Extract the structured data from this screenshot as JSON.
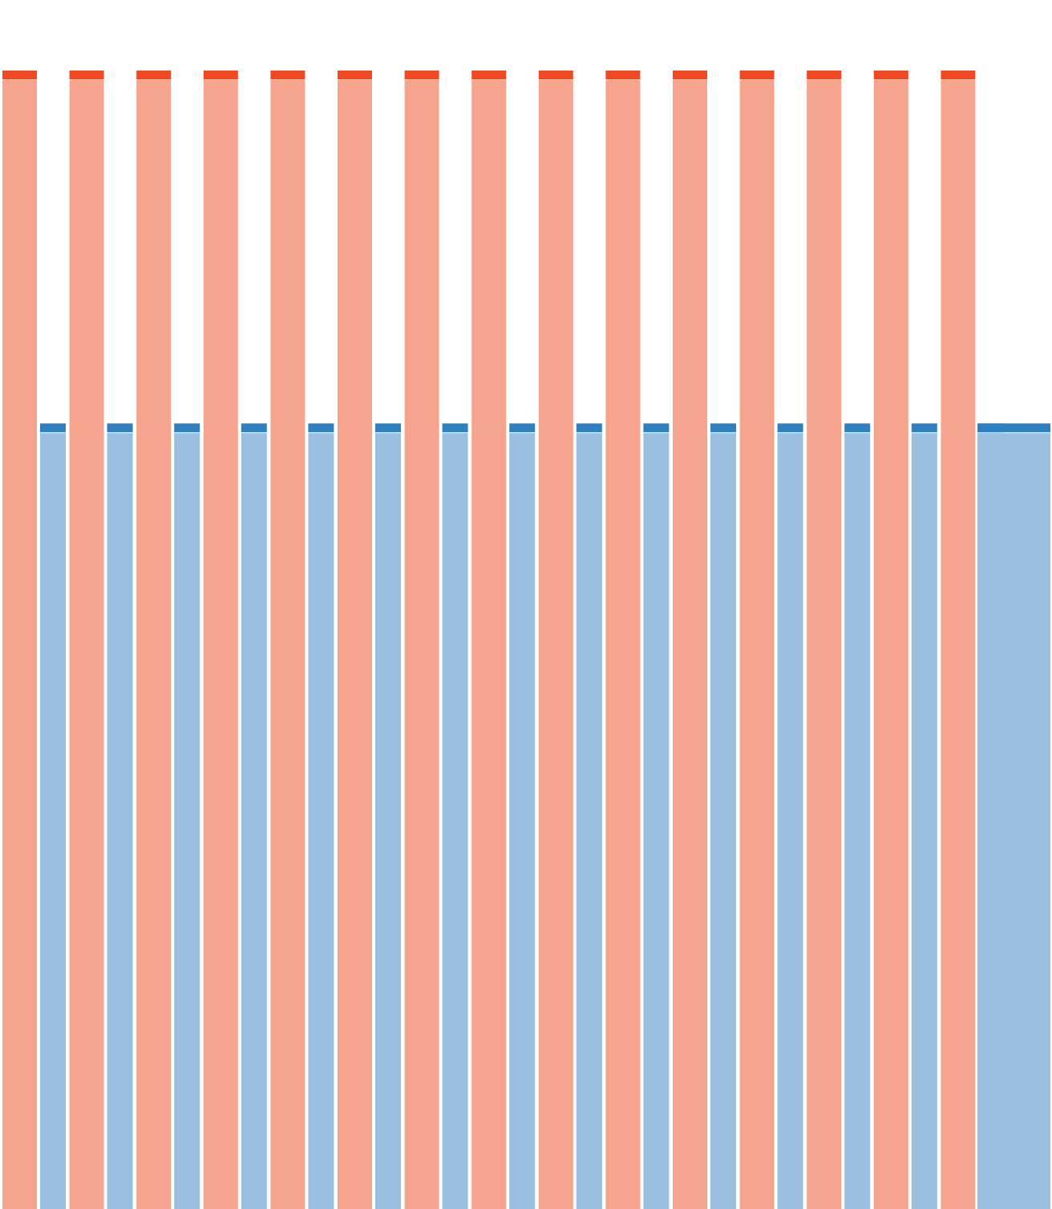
{
  "chart_data": {
    "type": "bar",
    "title": "",
    "xlabel": "",
    "ylabel": "",
    "ylim": [
      0,
      100
    ],
    "grid": false,
    "legend": "none",
    "series": [
      {
        "color": "#f7a48f",
        "cap_color": "#f04923",
        "values": [
          100,
          100,
          100,
          100,
          100,
          100,
          100,
          100,
          100,
          100,
          100,
          100,
          100,
          100,
          100
        ]
      },
      {
        "color": "#9abfdf",
        "cap_color": "#3080c0",
        "values": [
          69,
          69,
          69,
          69,
          69,
          69,
          69,
          69,
          69,
          69,
          69,
          69,
          69,
          69,
          69,
          69
        ]
      }
    ]
  }
}
